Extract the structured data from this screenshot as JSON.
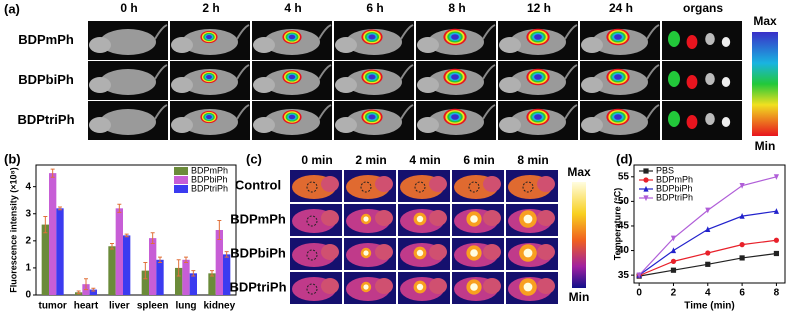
{
  "panel_a": {
    "label": "(a)",
    "columns": [
      "0 h",
      "2 h",
      "4 h",
      "6 h",
      "8 h",
      "12 h",
      "24 h",
      "organs"
    ],
    "rows": [
      "BDPmPh",
      "BDPbiPh",
      "BDPtriPh"
    ],
    "scale": {
      "max": "Max",
      "min": "Min"
    }
  },
  "panel_c": {
    "label": "(c)",
    "columns": [
      "0 min",
      "2 min",
      "4 min",
      "6 min",
      "8 min"
    ],
    "rows": [
      "Control",
      "BDPmPh",
      "BDPbiPh",
      "BDPtriPh"
    ],
    "scale": {
      "max": "Max",
      "min": "Min"
    }
  },
  "chart_data": [
    {
      "type": "bar",
      "label": "(b)",
      "y_label": "Fluorescence intensity (×10⁸)",
      "categories": [
        "tumor",
        "heart",
        "liver",
        "spleen",
        "lung",
        "kidney"
      ],
      "series": [
        {
          "name": "BDPmPh",
          "color": "#6b8b3a",
          "values": [
            2.6,
            0.1,
            1.8,
            0.9,
            1.0,
            0.8
          ],
          "errors": [
            0.3,
            0.05,
            0.1,
            0.3,
            0.3,
            0.1
          ]
        },
        {
          "name": "BDPbiPh",
          "color": "#c75ed6",
          "values": [
            4.5,
            0.4,
            3.2,
            2.1,
            1.3,
            2.4
          ],
          "errors": [
            0.15,
            0.2,
            0.15,
            0.2,
            0.1,
            0.35
          ]
        },
        {
          "name": "BDPtriPh",
          "color": "#3b3bf0",
          "values": [
            3.2,
            0.2,
            2.2,
            1.3,
            0.8,
            1.5
          ],
          "errors": [
            0.05,
            0.05,
            0.05,
            0.1,
            0.1,
            0.1
          ]
        }
      ],
      "ylim": [
        0,
        4.8
      ],
      "yticks": [
        0,
        1,
        2,
        3,
        4
      ],
      "legend": "upper right"
    },
    {
      "type": "line",
      "label": "(d)",
      "x_label": "Time (min)",
      "y_label": "Temperature (°C)",
      "x": [
        0,
        2,
        4,
        6,
        8
      ],
      "series": [
        {
          "name": "PBS",
          "color": "#222222",
          "marker": "square",
          "values": [
            34.8,
            36.0,
            37.2,
            38.5,
            39.4
          ]
        },
        {
          "name": "BDPmPh",
          "color": "#e8202a",
          "marker": "circle",
          "values": [
            34.9,
            37.8,
            39.5,
            41.2,
            42.1
          ]
        },
        {
          "name": "BDPbiPh",
          "color": "#2222cc",
          "marker": "triangle",
          "values": [
            35.0,
            40.0,
            44.3,
            47.0,
            48.0
          ]
        },
        {
          "name": "BDPtriPh",
          "color": "#b05ed8",
          "marker": "triangle-down",
          "values": [
            35.0,
            42.5,
            48.2,
            53.2,
            55.0
          ]
        }
      ],
      "xlim": [
        -0.3,
        8.5
      ],
      "xticks": [
        0,
        2,
        4,
        6,
        8
      ],
      "ylim": [
        33.4,
        57.4
      ],
      "yticks": [
        35,
        40,
        45,
        50,
        55
      ],
      "legend": "upper left"
    }
  ]
}
